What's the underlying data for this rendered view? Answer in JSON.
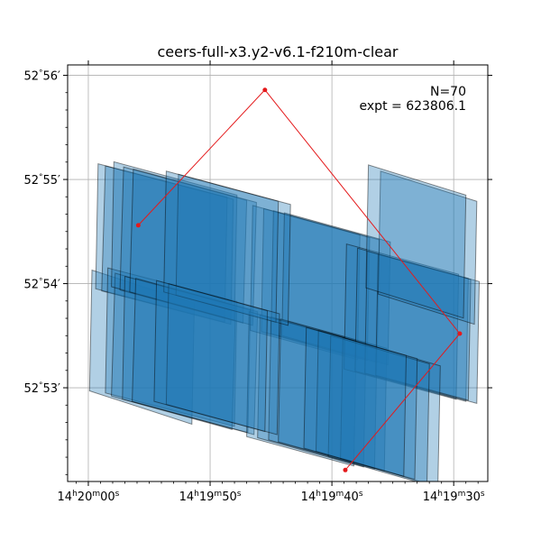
{
  "chart_data": {
    "type": "footprint",
    "title": "ceers-full-x3.y2-v6.1-f210m-clear",
    "annotation_lines": [
      "N=70",
      "expt = 623806.1"
    ],
    "x_axis": {
      "coord": "RA (seconds after 14h19m00s)",
      "range": [
        61.7,
        27.2
      ],
      "major_ticks": [
        {
          "value": 60,
          "label": [
            "14",
            "h",
            "20",
            "m",
            "00",
            "s"
          ]
        },
        {
          "value": 50,
          "label": [
            "14",
            "h",
            "19",
            "m",
            "50",
            "s"
          ]
        },
        {
          "value": 40,
          "label": [
            "14",
            "h",
            "19",
            "m",
            "40",
            "s"
          ]
        },
        {
          "value": 30,
          "label": [
            "14",
            "h",
            "19",
            "m",
            "30",
            "s"
          ]
        }
      ],
      "minor_step": 1
    },
    "y_axis": {
      "coord": "Dec (arcmin after 52d)",
      "range": [
        52.1,
        56.1
      ],
      "major_ticks": [
        {
          "value": 53,
          "label": [
            "52",
            "°",
            "53",
            "′"
          ]
        },
        {
          "value": 54,
          "label": [
            "52",
            "°",
            "54",
            "′"
          ]
        },
        {
          "value": 55,
          "label": [
            "52",
            "°",
            "55",
            "′"
          ]
        },
        {
          "value": 56,
          "label": [
            "52",
            "°",
            "56",
            "′"
          ]
        }
      ],
      "minor_step": 0.1667
    },
    "grid": true,
    "footprint_style": {
      "fill": "#1f77b4",
      "fill_opacity": 0.35,
      "edge": "#000000",
      "edge_opacity": 0.45
    },
    "footprints": [
      [
        [
          59.7,
          54.13
        ],
        [
          59.9,
          52.97
        ],
        [
          51.5,
          52.65
        ],
        [
          51.3,
          53.81
        ]
      ],
      [
        [
          59.2,
          55.15
        ],
        [
          59.4,
          53.95
        ],
        [
          48.8,
          53.63
        ],
        [
          48.6,
          54.83
        ]
      ],
      [
        [
          58.6,
          55.13
        ],
        [
          58.9,
          53.93
        ],
        [
          48.3,
          53.61
        ],
        [
          48.1,
          54.81
        ]
      ],
      [
        [
          58.4,
          54.15
        ],
        [
          58.6,
          52.95
        ],
        [
          48.0,
          52.63
        ],
        [
          47.8,
          53.83
        ]
      ],
      [
        [
          57.8,
          54.1
        ],
        [
          58.1,
          52.92
        ],
        [
          48.2,
          52.6
        ],
        [
          47.9,
          53.78
        ]
      ],
      [
        [
          57.9,
          55.17
        ],
        [
          58.1,
          53.97
        ],
        [
          48.0,
          53.65
        ],
        [
          47.8,
          54.85
        ]
      ],
      [
        [
          57.1,
          55.12
        ],
        [
          57.4,
          53.94
        ],
        [
          47.3,
          53.62
        ],
        [
          47.0,
          54.8
        ]
      ],
      [
        [
          57.0,
          54.07
        ],
        [
          57.2,
          52.89
        ],
        [
          46.9,
          52.57
        ],
        [
          46.7,
          53.75
        ]
      ],
      [
        [
          56.3,
          55.1
        ],
        [
          56.6,
          53.92
        ],
        [
          46.5,
          53.6
        ],
        [
          46.2,
          54.78
        ]
      ],
      [
        [
          56.1,
          54.05
        ],
        [
          56.4,
          52.87
        ],
        [
          46.4,
          52.55
        ],
        [
          46.1,
          53.73
        ]
      ],
      [
        [
          46.5,
          54.75
        ],
        [
          46.7,
          53.55
        ],
        [
          37.9,
          53.27
        ],
        [
          37.7,
          54.47
        ]
      ],
      [
        [
          45.6,
          54.72
        ],
        [
          45.8,
          53.54
        ],
        [
          37.1,
          53.26
        ],
        [
          36.9,
          54.44
        ]
      ],
      [
        [
          44.8,
          54.7
        ],
        [
          45.0,
          53.52
        ],
        [
          36.3,
          53.24
        ],
        [
          36.1,
          54.42
        ]
      ],
      [
        [
          43.9,
          54.68
        ],
        [
          44.1,
          53.5
        ],
        [
          35.4,
          53.22
        ],
        [
          35.2,
          54.4
        ]
      ],
      [
        [
          46.8,
          53.73
        ],
        [
          47.0,
          52.53
        ],
        [
          38.2,
          52.25
        ],
        [
          38.0,
          53.45
        ]
      ],
      [
        [
          45.9,
          53.7
        ],
        [
          46.1,
          52.52
        ],
        [
          37.4,
          52.24
        ],
        [
          37.2,
          53.42
        ]
      ],
      [
        [
          45.0,
          53.68
        ],
        [
          45.2,
          52.5
        ],
        [
          36.5,
          52.22
        ],
        [
          36.3,
          53.4
        ]
      ],
      [
        [
          44.2,
          53.66
        ],
        [
          44.4,
          52.48
        ],
        [
          35.7,
          52.2
        ],
        [
          35.5,
          53.38
        ]
      ],
      [
        [
          38.8,
          54.38
        ],
        [
          39.0,
          53.18
        ],
        [
          29.8,
          52.89
        ],
        [
          29.6,
          54.09
        ]
      ],
      [
        [
          37.9,
          54.34
        ],
        [
          38.1,
          53.16
        ],
        [
          29.0,
          52.87
        ],
        [
          28.8,
          54.05
        ]
      ],
      [
        [
          37.1,
          54.31
        ],
        [
          37.3,
          53.14
        ],
        [
          28.1,
          52.85
        ],
        [
          27.9,
          54.02
        ]
      ],
      [
        [
          36.2,
          54.28
        ],
        [
          36.4,
          53.12
        ],
        [
          28.8,
          52.88
        ],
        [
          28.6,
          54.04
        ]
      ],
      [
        [
          36.0,
          55.08
        ],
        [
          36.2,
          53.9
        ],
        [
          28.3,
          53.61
        ],
        [
          28.1,
          54.79
        ]
      ],
      [
        [
          37.0,
          55.14
        ],
        [
          37.2,
          53.96
        ],
        [
          29.2,
          53.67
        ],
        [
          29.0,
          54.85
        ]
      ],
      [
        [
          39.1,
          53.48
        ],
        [
          39.3,
          52.32
        ],
        [
          31.3,
          52.05
        ],
        [
          31.1,
          53.21
        ]
      ],
      [
        [
          40.1,
          53.5
        ],
        [
          40.3,
          52.34
        ],
        [
          32.2,
          52.07
        ],
        [
          32.0,
          53.23
        ]
      ],
      [
        [
          41.1,
          53.55
        ],
        [
          41.3,
          52.39
        ],
        [
          33.2,
          52.12
        ],
        [
          33.0,
          53.28
        ]
      ],
      [
        [
          42.1,
          53.58
        ],
        [
          42.3,
          52.42
        ],
        [
          34.1,
          52.15
        ],
        [
          33.9,
          53.31
        ]
      ],
      [
        [
          52.6,
          55.05
        ],
        [
          52.8,
          53.89
        ],
        [
          43.6,
          53.6
        ],
        [
          43.4,
          54.76
        ]
      ],
      [
        [
          53.6,
          55.08
        ],
        [
          53.8,
          53.92
        ],
        [
          44.6,
          53.63
        ],
        [
          44.4,
          54.79
        ]
      ],
      [
        [
          53.4,
          54.0
        ],
        [
          53.6,
          52.84
        ],
        [
          44.5,
          52.55
        ],
        [
          44.3,
          53.71
        ]
      ],
      [
        [
          54.4,
          54.03
        ],
        [
          54.6,
          52.87
        ],
        [
          45.5,
          52.58
        ],
        [
          45.3,
          53.74
        ]
      ]
    ],
    "dither_path": [
      {
        "ra": 55.9,
        "dec": 54.56
      },
      {
        "ra": 45.5,
        "dec": 55.86
      },
      {
        "ra": 29.5,
        "dec": 53.52
      },
      {
        "ra": 38.9,
        "dec": 52.21
      }
    ],
    "dither_color": "#e41a1c"
  }
}
